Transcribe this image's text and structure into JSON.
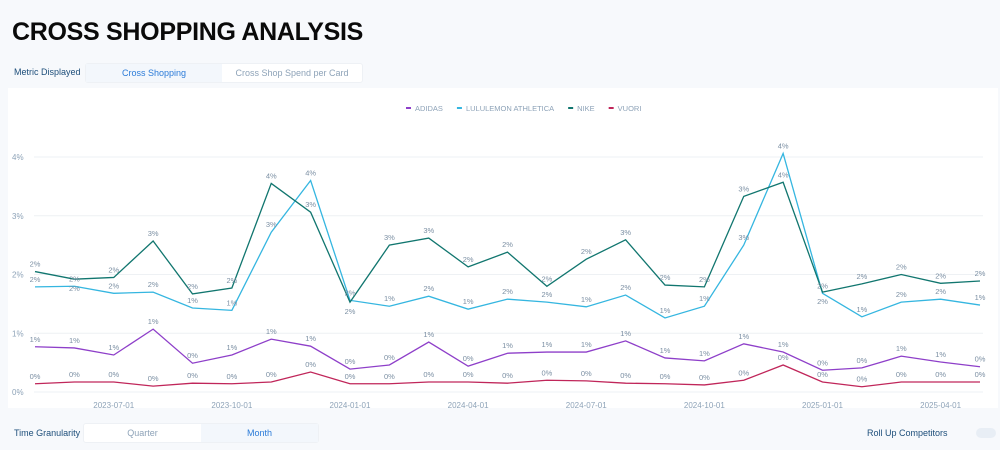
{
  "title": "CROSS SHOPPING ANALYSIS",
  "metric": {
    "label": "Metric Displayed",
    "options": [
      "Cross Shopping",
      "Cross Shop Spend per Card"
    ],
    "selected": 0
  },
  "granularity": {
    "label": "Time Granularity",
    "options": [
      "Quarter",
      "Month"
    ],
    "selected": 1
  },
  "rollup": {
    "label": "Roll Up Competitors",
    "on": false
  },
  "chart_data": {
    "type": "line",
    "x": [
      "2023-05-01",
      "2023-06-01",
      "2023-07-01",
      "2023-08-01",
      "2023-09-01",
      "2023-10-01",
      "2023-11-01",
      "2023-12-01",
      "2024-01-01",
      "2024-02-01",
      "2024-03-01",
      "2024-04-01",
      "2024-05-01",
      "2024-06-01",
      "2024-07-01",
      "2024-08-01",
      "2024-09-01",
      "2024-10-01",
      "2024-11-01",
      "2024-12-01",
      "2025-01-01",
      "2025-02-01",
      "2025-03-01",
      "2025-04-01",
      "2025-05-01"
    ],
    "xticks": [
      "2023-07-01",
      "2023-10-01",
      "2024-01-01",
      "2024-04-01",
      "2024-07-01",
      "2024-10-01",
      "2025-01-01",
      "2025-04-01"
    ],
    "yticks": [
      "0%",
      "1%",
      "2%",
      "3%",
      "4%"
    ],
    "ylim": [
      0,
      4
    ],
    "grid": true,
    "legend": "top-center",
    "series": [
      {
        "name": "ADIDAS",
        "color": "#8e3fc9",
        "values": [
          0.77,
          0.75,
          0.63,
          1.07,
          0.49,
          0.63,
          0.9,
          0.78,
          0.39,
          0.46,
          0.85,
          0.44,
          0.66,
          0.68,
          0.68,
          0.87,
          0.58,
          0.53,
          0.82,
          0.68,
          0.37,
          0.41,
          0.61,
          0.51,
          0.43
        ]
      },
      {
        "name": "LULULEMON ATHLETICA",
        "color": "#35b6e0",
        "values": [
          1.79,
          1.8,
          1.68,
          1.7,
          1.43,
          1.39,
          2.72,
          3.6,
          1.56,
          1.46,
          1.63,
          1.41,
          1.58,
          1.53,
          1.45,
          1.65,
          1.26,
          1.46,
          2.5,
          4.06,
          1.68,
          1.28,
          1.53,
          1.58,
          1.48
        ]
      },
      {
        "name": "NIKE",
        "color": "#11766f",
        "values": [
          2.05,
          1.92,
          1.95,
          2.57,
          1.67,
          1.77,
          3.55,
          3.06,
          1.53,
          2.5,
          2.62,
          2.13,
          2.38,
          1.8,
          2.26,
          2.59,
          1.82,
          1.79,
          3.33,
          3.57,
          1.7,
          1.84,
          2.0,
          1.85,
          1.89
        ]
      },
      {
        "name": "VUORI",
        "color": "#c0265a",
        "values": [
          0.14,
          0.17,
          0.17,
          0.1,
          0.15,
          0.14,
          0.17,
          0.34,
          0.14,
          0.14,
          0.17,
          0.17,
          0.15,
          0.2,
          0.19,
          0.15,
          0.14,
          0.12,
          0.2,
          0.46,
          0.17,
          0.09,
          0.17,
          0.17,
          0.17
        ]
      }
    ]
  }
}
